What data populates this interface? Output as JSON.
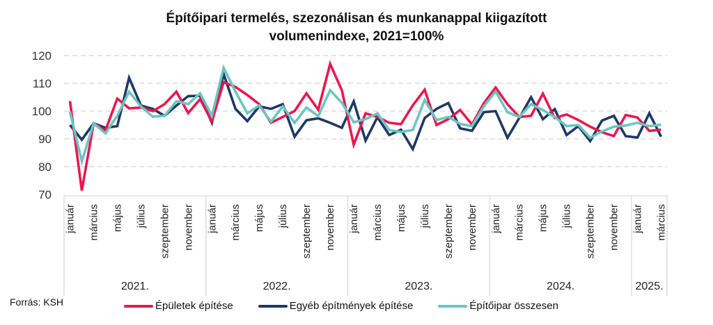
{
  "title": {
    "line1": "Építőipari termelés, szezonálisan és munkanappal kiigazított",
    "line2": "volumenindexe, 2021=100%"
  },
  "source": "Forrás: KSH",
  "chart_data": {
    "type": "line",
    "title": "Építőipari termelés, szezonálisan és munkanappal kiigazított volumenindexe, 2021=100%",
    "xlabel": "",
    "ylabel": "",
    "ylim": [
      70,
      120
    ],
    "yticks": [
      "70",
      "80",
      "90",
      "100",
      "110",
      "120"
    ],
    "ytick_values": [
      70,
      80,
      90,
      100,
      110,
      120
    ],
    "grid": "horizontal dashed",
    "legend_position": "bottom",
    "years": [
      {
        "label": "2021.",
        "months": 12
      },
      {
        "label": "2022.",
        "months": 12
      },
      {
        "label": "2023.",
        "months": 12
      },
      {
        "label": "2024.",
        "months": 12
      },
      {
        "label": "2025.",
        "months": 3
      }
    ],
    "month_labels": [
      "január",
      "",
      "március",
      "",
      "május",
      "",
      "július",
      "",
      "szeptember",
      "",
      "november",
      ""
    ],
    "series": [
      {
        "name": "Épületek építése",
        "color": "#E8184F",
        "values": [
          103.6,
          71.4,
          95.6,
          93.0,
          104.5,
          101.0,
          101.3,
          100.0,
          102.5,
          107.0,
          99.3,
          104.3,
          96.3,
          110.4,
          108.7,
          105.8,
          102.5,
          95.8,
          97.9,
          100.0,
          106.4,
          100.5,
          117.0,
          107.5,
          87.9,
          99.2,
          97.9,
          95.8,
          95.3,
          102.1,
          107.7,
          95.0,
          97.1,
          100.4,
          95.2,
          102.8,
          108.5,
          102.5,
          97.9,
          98.3,
          106.3,
          97.5,
          98.8,
          96.8,
          94.4,
          92.4,
          91.0,
          98.6,
          97.7,
          92.9,
          93.3
        ]
      },
      {
        "name": "Egyéb építmények építése",
        "color": "#1F3864",
        "values": [
          95.0,
          89.7,
          95.6,
          94.0,
          94.6,
          112.0,
          102.0,
          100.8,
          98.3,
          102.0,
          105.4,
          105.5,
          95.8,
          113.3,
          100.8,
          96.4,
          101.7,
          100.8,
          102.5,
          90.8,
          96.7,
          97.4,
          95.8,
          94.0,
          103.5,
          89.4,
          97.8,
          91.4,
          93.3,
          86.3,
          97.5,
          100.8,
          102.9,
          93.8,
          92.9,
          99.6,
          100.0,
          90.4,
          97.5,
          105.0,
          97.1,
          100.7,
          91.4,
          94.6,
          89.2,
          96.6,
          98.3,
          91.0,
          90.5,
          99.2,
          90.8
        ]
      },
      {
        "name": "Építőipar összesen",
        "color": "#6CC5C0",
        "values": [
          99.8,
          81.9,
          95.6,
          92.0,
          98.3,
          107.0,
          101.7,
          98.0,
          98.3,
          103.6,
          102.5,
          106.4,
          98.3,
          115.6,
          107.0,
          99.2,
          102.0,
          96.2,
          101.7,
          95.8,
          101.3,
          98.2,
          107.5,
          103.0,
          96.0,
          97.1,
          99.2,
          93.2,
          92.5,
          93.2,
          104.0,
          96.8,
          97.9,
          95.4,
          94.6,
          101.7,
          107.1,
          99.6,
          97.9,
          102.5,
          100.4,
          97.9,
          94.6,
          95.0,
          90.4,
          92.7,
          94.4,
          94.8,
          95.8,
          94.6,
          95.1
        ]
      }
    ]
  }
}
